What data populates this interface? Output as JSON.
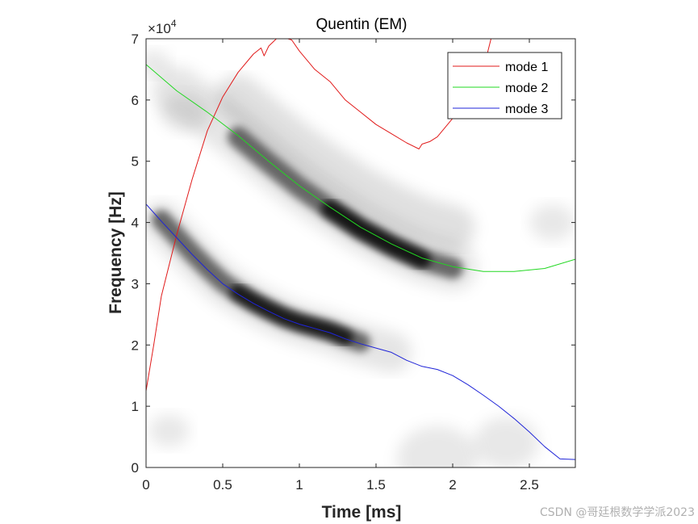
{
  "chart_data": {
    "type": "line",
    "title": "Quentin (EM)",
    "xlabel": "Time [ms]",
    "ylabel": "Frequency [Hz]",
    "y_exponent_label": "×10",
    "y_exponent_power": "4",
    "xlim": [
      0,
      2.8
    ],
    "ylim": [
      0,
      70000
    ],
    "xticks": [
      0,
      0.5,
      1,
      1.5,
      2,
      2.5
    ],
    "xtick_labels": [
      "0",
      "0.5",
      "1",
      "1.5",
      "2",
      "2.5"
    ],
    "yticks": [
      0,
      10000,
      20000,
      30000,
      40000,
      50000,
      60000,
      70000
    ],
    "ytick_labels": [
      "0",
      "1",
      "2",
      "3",
      "4",
      "5",
      "6",
      "7"
    ],
    "legend_position": "top-right",
    "background": "grayscale time-frequency representation with dark ridges following mode 2 and mode 3",
    "series": [
      {
        "name": "mode 1",
        "color": "#e11a1a",
        "x": [
          0,
          0.05,
          0.1,
          0.2,
          0.3,
          0.4,
          0.5,
          0.6,
          0.7,
          0.75,
          0.77,
          0.8,
          0.85,
          0.9,
          0.95,
          1.0,
          1.1,
          1.2,
          1.3,
          1.4,
          1.5,
          1.6,
          1.7,
          1.78,
          1.8,
          1.85,
          1.9,
          2.0,
          2.1,
          2.2,
          2.25,
          2.3,
          2.4,
          2.5,
          2.6,
          2.7,
          2.8
        ],
        "y": [
          12500,
          20000,
          28000,
          38000,
          47000,
          55000,
          60500,
          64500,
          67500,
          68500,
          67200,
          68800,
          70000,
          70200,
          69800,
          68000,
          65000,
          63000,
          60000,
          58000,
          56000,
          54500,
          53000,
          52000,
          52800,
          53200,
          54000,
          57000,
          61000,
          65000,
          70000,
          70000,
          70000,
          70000,
          70000,
          70000,
          70000
        ]
      },
      {
        "name": "mode 2",
        "color": "#22d822",
        "x": [
          0,
          0.2,
          0.4,
          0.6,
          0.8,
          1.0,
          1.2,
          1.4,
          1.6,
          1.8,
          2.0,
          2.2,
          2.4,
          2.6,
          2.8
        ],
        "y": [
          65800,
          61500,
          58000,
          54200,
          50000,
          46000,
          42500,
          39200,
          36500,
          34200,
          32800,
          32000,
          32000,
          32500,
          34000
        ]
      },
      {
        "name": "mode 3",
        "color": "#1f24d8",
        "x": [
          0,
          0.1,
          0.2,
          0.3,
          0.4,
          0.5,
          0.6,
          0.7,
          0.8,
          0.9,
          1.0,
          1.1,
          1.2,
          1.3,
          1.4,
          1.5,
          1.6,
          1.7,
          1.8,
          1.9,
          2.0,
          2.1,
          2.2,
          2.3,
          2.4,
          2.5,
          2.6,
          2.7,
          2.8
        ],
        "y": [
          43000,
          40200,
          37500,
          34800,
          32300,
          30000,
          28300,
          26800,
          25500,
          24300,
          23400,
          22700,
          22000,
          21000,
          20200,
          19500,
          18800,
          17500,
          16500,
          16000,
          15000,
          13500,
          11800,
          10000,
          8000,
          5800,
          3400,
          1400,
          1300
        ]
      }
    ]
  },
  "watermark": "CSDN @哥廷根数学学派2023"
}
